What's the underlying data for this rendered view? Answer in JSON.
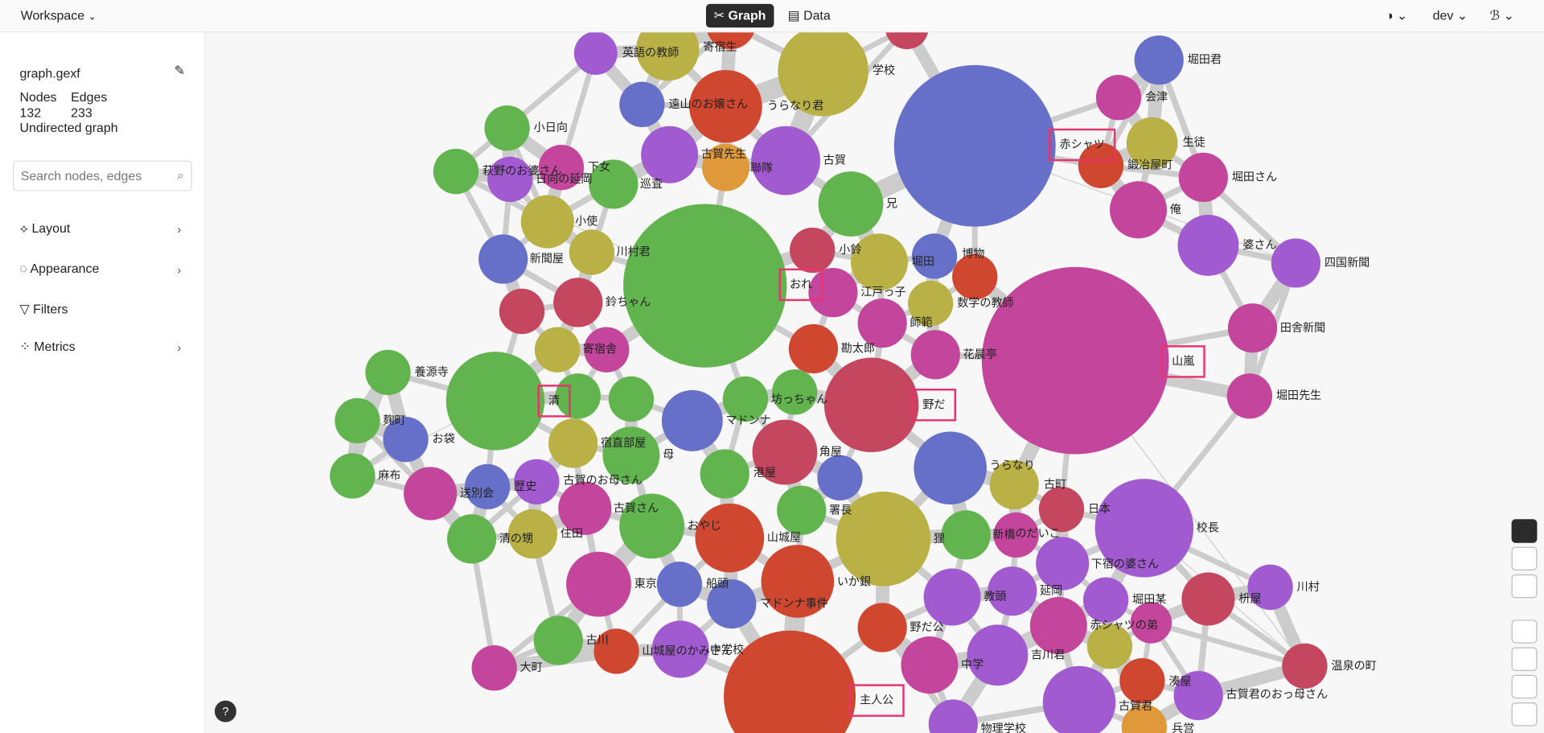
{
  "topbar": {
    "workspace": "Workspace",
    "tabs": [
      "Graph",
      "Data"
    ],
    "user": "dev"
  },
  "sidebar": {
    "file": "graph.gexf",
    "nodes_label": "Nodes",
    "edges_label": "Edges",
    "nodes": 132,
    "edges": 233,
    "graph_type": "Undirected graph",
    "search_placeholder": "Search nodes, edges",
    "menu": [
      "Layout",
      "Appearance",
      "Filters",
      "Metrics"
    ]
  },
  "graph": {
    "nodes": [
      {
        "label": "英語の教師"
      },
      {
        "label": "寄宿生"
      },
      {
        "label": "遠山のお嬢さん"
      },
      {
        "label": "うらなり君"
      },
      {
        "label": "学校"
      },
      {
        "label": "赤シャツ"
      },
      {
        "label": "堀田君"
      },
      {
        "label": "会津"
      },
      {
        "label": "生徒"
      },
      {
        "label": "鍛冶屋町"
      },
      {
        "label": "堀田さん"
      },
      {
        "label": "俺"
      },
      {
        "label": "婆さん"
      },
      {
        "label": "四国新聞"
      },
      {
        "label": "山嵐"
      },
      {
        "label": "田舎新聞"
      },
      {
        "label": "堀田先生"
      },
      {
        "label": "小日向"
      },
      {
        "label": "萩野のお婆さん"
      },
      {
        "label": "日向の延岡"
      },
      {
        "label": "下女"
      },
      {
        "label": "巡査"
      },
      {
        "label": "古賀先生"
      },
      {
        "label": "聯隊"
      },
      {
        "label": "古賀"
      },
      {
        "label": "兄"
      },
      {
        "label": "小使"
      },
      {
        "label": "新聞屋"
      },
      {
        "label": "川村君"
      },
      {
        "label": "鈴ちゃん"
      },
      {
        "label": "おれ"
      },
      {
        "label": "小鈴"
      },
      {
        "label": "江戸っ子"
      },
      {
        "label": "堀田"
      },
      {
        "label": "博物"
      },
      {
        "label": "数学の教師"
      },
      {
        "label": "師範"
      },
      {
        "label": "勘太郎"
      },
      {
        "label": "花晨亭"
      },
      {
        "label": "寄宿舎"
      },
      {
        "label": "養源寺"
      },
      {
        "label": "清"
      },
      {
        "label": "マドンナ"
      },
      {
        "label": "坊っちゃん"
      },
      {
        "label": "野だ"
      },
      {
        "label": "麹町"
      },
      {
        "label": "お袋"
      },
      {
        "label": "宿直部屋"
      },
      {
        "label": "母"
      },
      {
        "label": "角屋"
      },
      {
        "label": "港屋"
      },
      {
        "label": "うらなり"
      },
      {
        "label": "古町"
      },
      {
        "label": "日本"
      },
      {
        "label": "校長"
      },
      {
        "label": "麻布"
      },
      {
        "label": "送別会"
      },
      {
        "label": "歴史"
      },
      {
        "label": "古賀のお母さん"
      },
      {
        "label": "古賀さん"
      },
      {
        "label": "おやじ"
      },
      {
        "label": "山城屋"
      },
      {
        "label": "署長"
      },
      {
        "label": "狸"
      },
      {
        "label": "新橋"
      },
      {
        "label": "のだいこ"
      },
      {
        "label": "下宿の婆さん"
      },
      {
        "label": "清の甥"
      },
      {
        "label": "住田"
      },
      {
        "label": "東京"
      },
      {
        "label": "船頭"
      },
      {
        "label": "いか銀"
      },
      {
        "label": "マドンナ事件"
      },
      {
        "label": "教頭"
      },
      {
        "label": "延岡"
      },
      {
        "label": "堀田某"
      },
      {
        "label": "枡屋"
      },
      {
        "label": "川村"
      },
      {
        "label": "古川"
      },
      {
        "label": "山城屋のかみさん"
      },
      {
        "label": "中学校"
      },
      {
        "label": "主人公"
      },
      {
        "label": "野だ公"
      },
      {
        "label": "赤シャツの弟"
      },
      {
        "label": "中学"
      },
      {
        "label": "吉川君"
      },
      {
        "label": "温泉の町"
      },
      {
        "label": "大町"
      },
      {
        "label": "湊屋"
      },
      {
        "label": "古賀君"
      },
      {
        "label": "古賀君のおっ母さん"
      },
      {
        "label": "物理学校"
      },
      {
        "label": "兵営"
      }
    ]
  }
}
